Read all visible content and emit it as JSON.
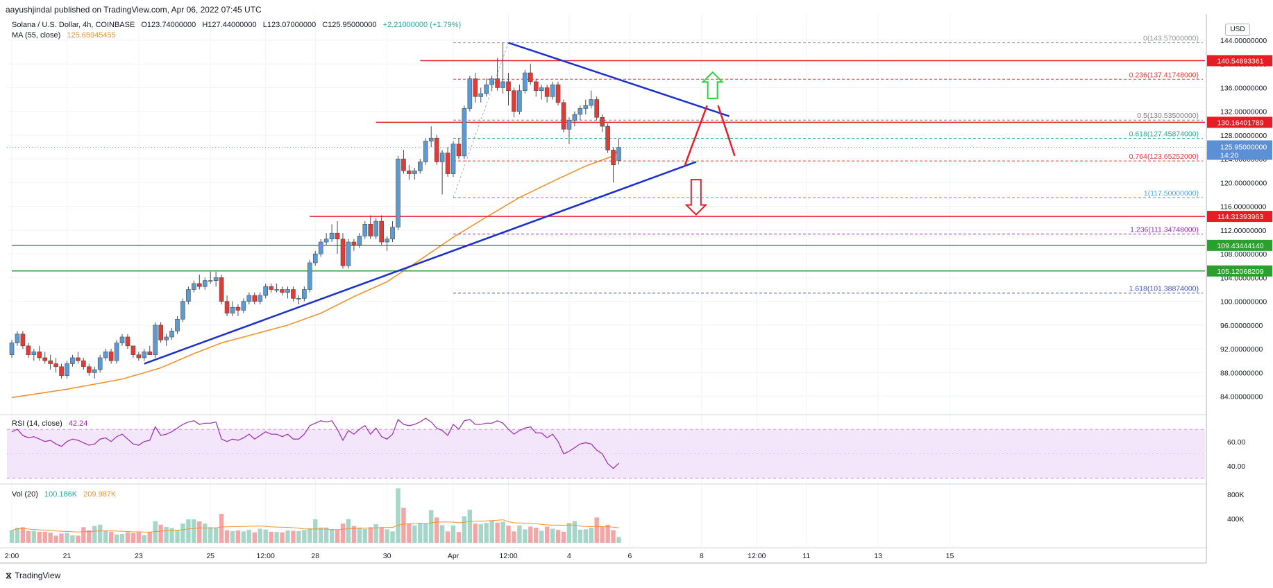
{
  "header": {
    "published": "aayushjindal published on TradingView.com, Apr 06, 2022 07:45 UTC",
    "footer_brand": "TradingView"
  },
  "legend": {
    "symbol": "Solana / U.S. Dollar, 4h, COINBASE",
    "open": "O123.74000000",
    "high": "H127.44000000",
    "low": "L123.07000000",
    "close": "C125.95000000",
    "change": "+2.21000000 (+1.79%)",
    "ma_label": "MA (55, close)",
    "ma_value": "125.65945455",
    "rsi_label": "RSI (14, close)",
    "rsi_value": "42.24",
    "vol_label": "Vol (20)",
    "vol_value": "100.186K",
    "vol_ma_value": "209.987K"
  },
  "currency_badge": "USD",
  "price_axis": {
    "ticks": [
      "144.00000000",
      "140.00000000",
      "136.00000000",
      "132.00000000",
      "128.00000000",
      "124.00000000",
      "120.00000000",
      "116.00000000",
      "112.00000000",
      "108.00000000",
      "104.00000000",
      "100.00000000",
      "96.00000000",
      "92.00000000",
      "88.00000000",
      "84.00000000"
    ],
    "tick_values": [
      144,
      140,
      136,
      132,
      128,
      124,
      120,
      116,
      112,
      108,
      104,
      100,
      96,
      92,
      88,
      84
    ],
    "last_price_label": "125.95000000",
    "countdown": "14:20"
  },
  "rsi_axis": {
    "ticks": [
      "60.00",
      "40.00"
    ],
    "tick_values": [
      60,
      40
    ]
  },
  "vol_axis": {
    "ticks": [
      "800K",
      "400K"
    ],
    "tick_values": [
      800,
      400
    ]
  },
  "time_axis": {
    "labels": [
      "2:00",
      "21",
      "23",
      "25",
      "12:00",
      "28",
      "30",
      "Apr",
      "12:00",
      "4",
      "6",
      "8",
      "12:00",
      "11",
      "13",
      "15"
    ],
    "bar_index": [
      0,
      10,
      23,
      36,
      46,
      55,
      68,
      80,
      90,
      101,
      112,
      125,
      135,
      144,
      157,
      170
    ]
  },
  "colors": {
    "up": "#26a69a",
    "up_fill": "#5b9bd5",
    "down": "#ef5350",
    "down_fill": "#e53935",
    "ma": "#f0922f",
    "resistance": "#e81c24",
    "support": "#2ca02c",
    "trendline": "#1c2fcf",
    "rsi": "#9c27b0",
    "rsi_band": "#f3e5fa",
    "last_price_tag": "#5b8fd6"
  },
  "fib_levels": [
    {
      "label": "0(143.57000000)",
      "value": 143.57,
      "color": "#9598a1"
    },
    {
      "label": "0.236(137.41748000)",
      "value": 137.41748,
      "color": "#e53935"
    },
    {
      "label": "0.5(130.53500000)",
      "value": 130.535,
      "color": "#7e7e7e"
    },
    {
      "label": "0.618(127.45874000)",
      "value": 127.45874,
      "color": "#26a69a"
    },
    {
      "label": "0.764(123.65252000)",
      "value": 123.65252,
      "color": "#e53935"
    },
    {
      "label": "1(117.50000000)",
      "value": 117.5,
      "color": "#42a5f5"
    },
    {
      "label": "1.236(111.34748000)",
      "value": 111.34748,
      "color": "#9c27b0"
    },
    {
      "label": "1.618(101.38874000)",
      "value": 101.38874,
      "color": "#3f51b5"
    }
  ],
  "horizontal_levels": [
    {
      "label": "140.54893361",
      "value": 140.54893361,
      "kind": "resistance",
      "from_bar": 74
    },
    {
      "label": "130.16401789",
      "value": 130.16401789,
      "kind": "resistance",
      "from_bar": 66
    },
    {
      "label": "114.31393963",
      "value": 114.31393963,
      "kind": "resistance",
      "from_bar": 54
    },
    {
      "label": "109.43444140",
      "value": 109.4344414,
      "kind": "support",
      "from_bar": 0
    },
    {
      "label": "105.12068209",
      "value": 105.12068209,
      "kind": "support",
      "from_bar": 0
    }
  ],
  "chart_data": {
    "type": "candlestick",
    "symbol": "SOL/USD",
    "interval": "4h",
    "ylim": [
      81.5,
      147.5
    ],
    "candles": [
      [
        91.0,
        93.5,
        90.5,
        93.0
      ],
      [
        93.0,
        95.0,
        92.5,
        94.5
      ],
      [
        94.5,
        95.0,
        92.0,
        92.5
      ],
      [
        92.5,
        93.0,
        90.5,
        91.0
      ],
      [
        91.0,
        92.0,
        90.0,
        91.5
      ],
      [
        91.5,
        92.5,
        90.0,
        90.5
      ],
      [
        90.5,
        91.5,
        89.5,
        90.0
      ],
      [
        90.0,
        91.0,
        88.5,
        89.5
      ],
      [
        89.5,
        90.5,
        88.0,
        89.0
      ],
      [
        89.0,
        89.5,
        87.0,
        87.5
      ],
      [
        87.5,
        90.0,
        87.0,
        89.5
      ],
      [
        89.5,
        91.0,
        89.0,
        90.5
      ],
      [
        90.5,
        91.5,
        89.5,
        90.0
      ],
      [
        90.0,
        90.5,
        88.5,
        89.0
      ],
      [
        89.0,
        89.5,
        87.5,
        88.0
      ],
      [
        88.0,
        89.0,
        87.0,
        88.5
      ],
      [
        88.5,
        91.0,
        88.0,
        90.5
      ],
      [
        90.5,
        92.0,
        90.0,
        91.5
      ],
      [
        91.5,
        92.0,
        89.5,
        90.0
      ],
      [
        90.0,
        93.5,
        89.5,
        93.0
      ],
      [
        93.0,
        94.5,
        92.5,
        94.0
      ],
      [
        94.0,
        94.5,
        92.0,
        92.5
      ],
      [
        92.5,
        92.5,
        90.5,
        91.0
      ],
      [
        91.0,
        91.5,
        90.0,
        90.5
      ],
      [
        90.5,
        92.0,
        90.0,
        91.5
      ],
      [
        91.5,
        92.5,
        91.0,
        91.0
      ],
      [
        91.0,
        96.5,
        90.5,
        96.0
      ],
      [
        96.0,
        96.5,
        93.0,
        93.5
      ],
      [
        93.5,
        94.5,
        92.5,
        94.0
      ],
      [
        94.0,
        95.5,
        93.5,
        95.0
      ],
      [
        95.0,
        97.5,
        94.5,
        97.0
      ],
      [
        97.0,
        100.5,
        96.5,
        100.0
      ],
      [
        100.0,
        102.5,
        99.5,
        102.0
      ],
      [
        102.0,
        103.5,
        101.5,
        103.0
      ],
      [
        103.0,
        104.5,
        102.0,
        102.5
      ],
      [
        102.5,
        104.0,
        102.0,
        103.5
      ],
      [
        103.5,
        105.0,
        103.0,
        103.5
      ],
      [
        103.5,
        105.0,
        102.5,
        104.0
      ],
      [
        104.0,
        104.5,
        99.5,
        100.0
      ],
      [
        100.0,
        101.0,
        97.5,
        98.0
      ],
      [
        98.0,
        100.0,
        97.5,
        99.0
      ],
      [
        99.0,
        99.5,
        97.5,
        98.5
      ],
      [
        98.5,
        100.5,
        98.0,
        100.0
      ],
      [
        100.0,
        101.5,
        99.5,
        101.0
      ],
      [
        101.0,
        101.5,
        99.5,
        100.0
      ],
      [
        100.0,
        101.5,
        99.5,
        101.0
      ],
      [
        101.0,
        103.0,
        100.5,
        102.5
      ],
      [
        102.5,
        103.0,
        101.5,
        102.0
      ],
      [
        102.0,
        103.0,
        101.5,
        102.0
      ],
      [
        102.0,
        102.5,
        101.0,
        101.5
      ],
      [
        101.5,
        102.5,
        100.5,
        102.0
      ],
      [
        102.0,
        102.5,
        100.0,
        100.5
      ],
      [
        100.5,
        101.0,
        99.5,
        100.5
      ],
      [
        100.5,
        102.5,
        100.0,
        102.0
      ],
      [
        102.0,
        107.0,
        101.5,
        106.5
      ],
      [
        106.5,
        108.5,
        106.0,
        108.0
      ],
      [
        108.0,
        110.5,
        107.5,
        110.0
      ],
      [
        110.0,
        111.5,
        109.5,
        110.5
      ],
      [
        110.5,
        113.0,
        110.0,
        111.5
      ],
      [
        111.5,
        113.5,
        108.0,
        110.5
      ],
      [
        110.5,
        111.5,
        105.5,
        106.0
      ],
      [
        106.0,
        110.5,
        105.5,
        110.0
      ],
      [
        110.0,
        110.5,
        108.5,
        109.5
      ],
      [
        109.5,
        111.5,
        109.0,
        111.0
      ],
      [
        111.0,
        113.5,
        110.5,
        113.0
      ],
      [
        113.0,
        114.5,
        110.5,
        111.0
      ],
      [
        111.0,
        114.0,
        110.5,
        113.5
      ],
      [
        113.5,
        114.5,
        109.5,
        110.0
      ],
      [
        110.0,
        111.0,
        108.5,
        110.5
      ],
      [
        110.5,
        113.5,
        110.0,
        112.5
      ],
      [
        112.5,
        124.5,
        112.0,
        124.0
      ],
      [
        124.0,
        125.5,
        121.5,
        122.0
      ],
      [
        122.0,
        123.0,
        120.5,
        121.5
      ],
      [
        121.5,
        122.5,
        120.5,
        122.0
      ],
      [
        122.0,
        124.0,
        121.5,
        123.5
      ],
      [
        123.5,
        127.5,
        123.0,
        127.0
      ],
      [
        127.0,
        129.5,
        126.0,
        127.5
      ],
      [
        127.5,
        128.0,
        123.0,
        123.5
      ],
      [
        123.5,
        125.5,
        118.0,
        125.0
      ],
      [
        125.0,
        126.0,
        121.0,
        121.5
      ],
      [
        121.5,
        127.0,
        121.0,
        126.5
      ],
      [
        126.5,
        127.5,
        124.0,
        124.5
      ],
      [
        124.5,
        133.0,
        124.0,
        132.5
      ],
      [
        132.5,
        138.0,
        132.0,
        137.5
      ],
      [
        137.5,
        138.5,
        133.5,
        134.5
      ],
      [
        134.5,
        136.0,
        133.5,
        135.0
      ],
      [
        135.0,
        137.5,
        134.5,
        136.5
      ],
      [
        136.5,
        138.0,
        135.5,
        137.5
      ],
      [
        137.5,
        141.0,
        135.5,
        136.0
      ],
      [
        136.0,
        143.57,
        135.0,
        137.0
      ],
      [
        137.0,
        138.5,
        133.0,
        135.5
      ],
      [
        135.5,
        136.0,
        131.0,
        132.0
      ],
      [
        132.0,
        136.5,
        131.5,
        135.5
      ],
      [
        135.5,
        139.0,
        135.0,
        138.5
      ],
      [
        138.5,
        140.0,
        136.5,
        137.0
      ],
      [
        137.0,
        137.5,
        134.5,
        135.5
      ],
      [
        135.5,
        136.5,
        134.0,
        136.0
      ],
      [
        136.0,
        136.5,
        133.5,
        134.5
      ],
      [
        134.5,
        137.0,
        134.0,
        136.5
      ],
      [
        136.5,
        137.0,
        133.0,
        133.5
      ],
      [
        133.5,
        134.0,
        128.5,
        129.0
      ],
      [
        129.0,
        131.0,
        126.5,
        130.5
      ],
      [
        130.5,
        132.0,
        129.5,
        131.5
      ],
      [
        131.5,
        133.0,
        130.5,
        132.5
      ],
      [
        132.5,
        134.0,
        131.5,
        133.0
      ],
      [
        133.0,
        135.5,
        132.5,
        134.0
      ],
      [
        134.0,
        134.5,
        130.5,
        131.0
      ],
      [
        131.0,
        131.5,
        128.5,
        129.5
      ],
      [
        129.5,
        130.0,
        125.0,
        125.5
      ],
      [
        125.5,
        126.0,
        120.0,
        123.0
      ],
      [
        123.74,
        127.44,
        123.07,
        125.95
      ]
    ],
    "ma55": [
      [
        0,
        83.8
      ],
      [
        10,
        85.2
      ],
      [
        20,
        86.9
      ],
      [
        27,
        88.8
      ],
      [
        33,
        91.2
      ],
      [
        38,
        93.0
      ],
      [
        44,
        94.5
      ],
      [
        50,
        96.0
      ],
      [
        56,
        98.0
      ],
      [
        62,
        100.8
      ],
      [
        68,
        103.3
      ],
      [
        74,
        107.0
      ],
      [
        80,
        110.8
      ],
      [
        86,
        114.2
      ],
      [
        92,
        117.5
      ],
      [
        98,
        120.2
      ],
      [
        104,
        122.8
      ],
      [
        109,
        124.5
      ],
      [
        110,
        125.66
      ]
    ],
    "rsi": [
      68,
      70,
      65,
      63,
      64,
      62,
      60,
      61,
      58,
      56,
      60,
      62,
      61,
      59,
      57,
      58,
      62,
      63,
      60,
      64,
      66,
      62,
      58,
      57,
      60,
      61,
      72,
      65,
      66,
      68,
      71,
      74,
      76,
      77,
      74,
      75,
      75,
      76,
      62,
      60,
      62,
      61,
      63,
      66,
      62,
      65,
      68,
      66,
      66,
      64,
      66,
      62,
      62,
      66,
      73,
      75,
      77,
      76,
      77,
      70,
      61,
      69,
      66,
      70,
      73,
      66,
      71,
      64,
      62,
      66,
      78,
      74,
      73,
      74,
      76,
      79,
      76,
      71,
      69,
      65,
      74,
      70,
      77,
      78,
      74,
      74,
      75,
      75,
      77,
      75,
      70,
      66,
      69,
      71,
      72,
      67,
      67,
      63,
      66,
      60,
      50,
      52,
      55,
      58,
      59,
      58,
      53,
      50,
      42,
      38,
      42.24
    ],
    "volume": [
      210,
      250,
      260,
      195,
      200,
      185,
      185,
      170,
      120,
      155,
      165,
      125,
      120,
      260,
      210,
      280,
      300,
      195,
      185,
      140,
      150,
      175,
      160,
      175,
      130,
      180,
      360,
      300,
      265,
      245,
      215,
      320,
      390,
      390,
      355,
      320,
      260,
      255,
      480,
      210,
      195,
      205,
      190,
      215,
      175,
      235,
      220,
      185,
      180,
      175,
      205,
      200,
      195,
      215,
      240,
      390,
      255,
      255,
      230,
      215,
      320,
      395,
      280,
      255,
      230,
      260,
      310,
      260,
      225,
      190,
      900,
      580,
      315,
      290,
      330,
      315,
      540,
      420,
      295,
      190,
      290,
      180,
      440,
      550,
      320,
      310,
      330,
      370,
      335,
      350,
      285,
      190,
      290,
      225,
      270,
      250,
      200,
      270,
      235,
      215,
      185,
      330,
      360,
      220,
      225,
      250,
      420,
      270,
      300,
      210,
      100
    ]
  }
}
